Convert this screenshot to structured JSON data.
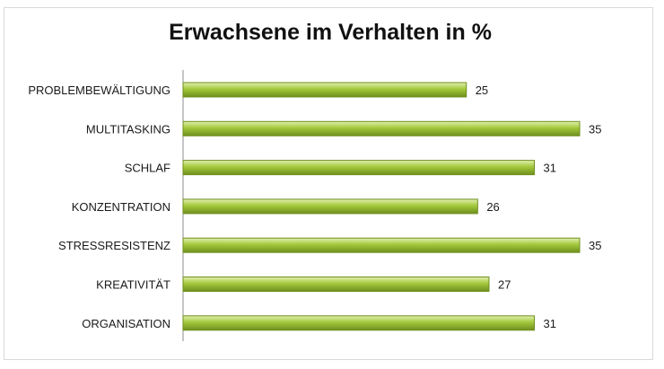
{
  "chart_data": {
    "type": "bar",
    "orientation": "horizontal",
    "title": "Erwachsene im Verhalten in %",
    "categories": [
      "PROBLEMBEWÄLTIGUNG",
      "MULTITASKING",
      "SCHLAF",
      "KONZENTRATION",
      "STRESSRESISTENZ",
      "KREATIVITÄT",
      "ORGANISATION"
    ],
    "values": [
      25,
      35,
      31,
      26,
      35,
      27,
      31
    ],
    "xlim": [
      0,
      35
    ],
    "grid": false,
    "legend": "none",
    "bar_color": "#a3c83b",
    "bar_color_dark": "#6f8f1e"
  }
}
